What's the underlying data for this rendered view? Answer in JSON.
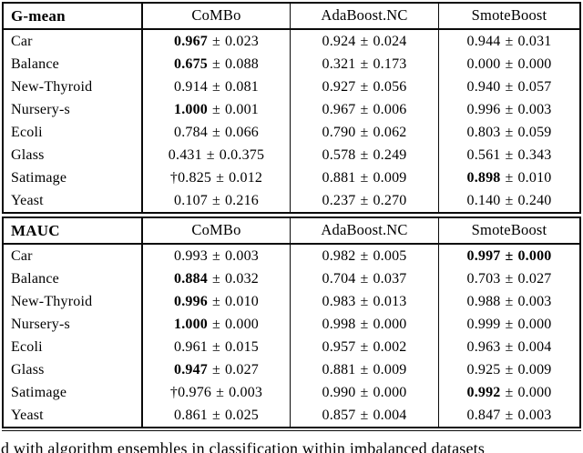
{
  "plus_minus": "±",
  "caption_fragment": "d with algorithm ensembles in classification within imbalanced datasets",
  "colors": {
    "background": "#ffffff",
    "text": "#000000",
    "border": "#0a0a0a"
  },
  "sections": [
    {
      "metric": "G-mean",
      "columns": [
        "CoMBo",
        "AdaBoost.NC",
        "SmoteBoost"
      ],
      "rows": [
        {
          "dataset": "Car",
          "cells": [
            {
              "mean": "0.967",
              "std": "0.023",
              "bold_mean": true
            },
            {
              "mean": "0.924",
              "std": "0.024"
            },
            {
              "mean": "0.944",
              "std": "0.031"
            }
          ]
        },
        {
          "dataset": "Balance",
          "cells": [
            {
              "mean": "0.675",
              "std": "0.088",
              "bold_mean": true
            },
            {
              "mean": "0.321",
              "std": "0.173"
            },
            {
              "mean": "0.000",
              "std": "0.000"
            }
          ]
        },
        {
          "dataset": "New-Thyroid",
          "cells": [
            {
              "mean": "0.914",
              "std": "0.081"
            },
            {
              "mean": "0.927",
              "std": "0.056"
            },
            {
              "mean": "0.940",
              "std": "0.057"
            }
          ]
        },
        {
          "dataset": "Nursery-s",
          "cells": [
            {
              "mean": "1.000",
              "std": "0.001",
              "bold_mean": true
            },
            {
              "mean": "0.967",
              "std": "0.006"
            },
            {
              "mean": "0.996",
              "std": "0.003"
            }
          ]
        },
        {
          "dataset": "Ecoli",
          "cells": [
            {
              "mean": "0.784",
              "std": "0.066"
            },
            {
              "mean": "0.790",
              "std": "0.062"
            },
            {
              "mean": "0.803",
              "std": "0.059"
            }
          ]
        },
        {
          "dataset": "Glass",
          "cells": [
            {
              "mean": "0.431",
              "std": "0.0.375"
            },
            {
              "mean": "0.578",
              "std": "0.249"
            },
            {
              "mean": "0.561",
              "std": "0.343"
            }
          ]
        },
        {
          "dataset": "Satimage",
          "cells": [
            {
              "prefix": "†",
              "mean": "0.825",
              "std": "0.012"
            },
            {
              "mean": "0.881",
              "std": "0.009"
            },
            {
              "mean": "0.898",
              "std": "0.010",
              "bold_mean": true
            }
          ]
        },
        {
          "dataset": "Yeast",
          "cells": [
            {
              "mean": "0.107",
              "std": "0.216"
            },
            {
              "mean": "0.237",
              "std": "0.270"
            },
            {
              "mean": "0.140",
              "std": "0.240"
            }
          ]
        }
      ]
    },
    {
      "metric": "MAUC",
      "columns": [
        "CoMBo",
        "AdaBoost.NC",
        "SmoteBoost"
      ],
      "rows": [
        {
          "dataset": "Car",
          "cells": [
            {
              "mean": "0.993",
              "std": "0.003"
            },
            {
              "mean": "0.982",
              "std": "0.005"
            },
            {
              "mean": "0.997",
              "std": "0.000",
              "bold_all": true
            }
          ]
        },
        {
          "dataset": "Balance",
          "cells": [
            {
              "mean": "0.884",
              "std": "0.032",
              "bold_mean": true
            },
            {
              "mean": "0.704",
              "std": "0.037"
            },
            {
              "mean": "0.703",
              "std": "0.027"
            }
          ]
        },
        {
          "dataset": "New-Thyroid",
          "cells": [
            {
              "mean": "0.996",
              "std": "0.010",
              "bold_mean": true
            },
            {
              "mean": "0.983",
              "std": "0.013"
            },
            {
              "mean": "0.988",
              "std": "0.003"
            }
          ]
        },
        {
          "dataset": "Nursery-s",
          "cells": [
            {
              "mean": "1.000",
              "std": "0.000",
              "bold_mean": true
            },
            {
              "mean": "0.998",
              "std": "0.000"
            },
            {
              "mean": "0.999",
              "std": "0.000"
            }
          ]
        },
        {
          "dataset": "Ecoli",
          "cells": [
            {
              "mean": "0.961",
              "std": "0.015"
            },
            {
              "mean": "0.957",
              "std": "0.002"
            },
            {
              "mean": "0.963",
              "std": "0.004"
            }
          ]
        },
        {
          "dataset": "Glass",
          "cells": [
            {
              "mean": "0.947",
              "std": "0.027",
              "bold_mean": true
            },
            {
              "mean": "0.881",
              "std": "0.009"
            },
            {
              "mean": "0.925",
              "std": "0.009"
            }
          ]
        },
        {
          "dataset": "Satimage",
          "cells": [
            {
              "prefix": "†",
              "mean": "0.976",
              "std": "0.003"
            },
            {
              "mean": "0.990",
              "std": "0.000"
            },
            {
              "mean": "0.992",
              "std": "0.000",
              "bold_mean": true
            }
          ]
        },
        {
          "dataset": "Yeast",
          "cells": [
            {
              "mean": "0.861",
              "std": "0.025"
            },
            {
              "mean": "0.857",
              "std": "0.004"
            },
            {
              "mean": "0.847",
              "std": "0.003"
            }
          ]
        }
      ]
    }
  ]
}
